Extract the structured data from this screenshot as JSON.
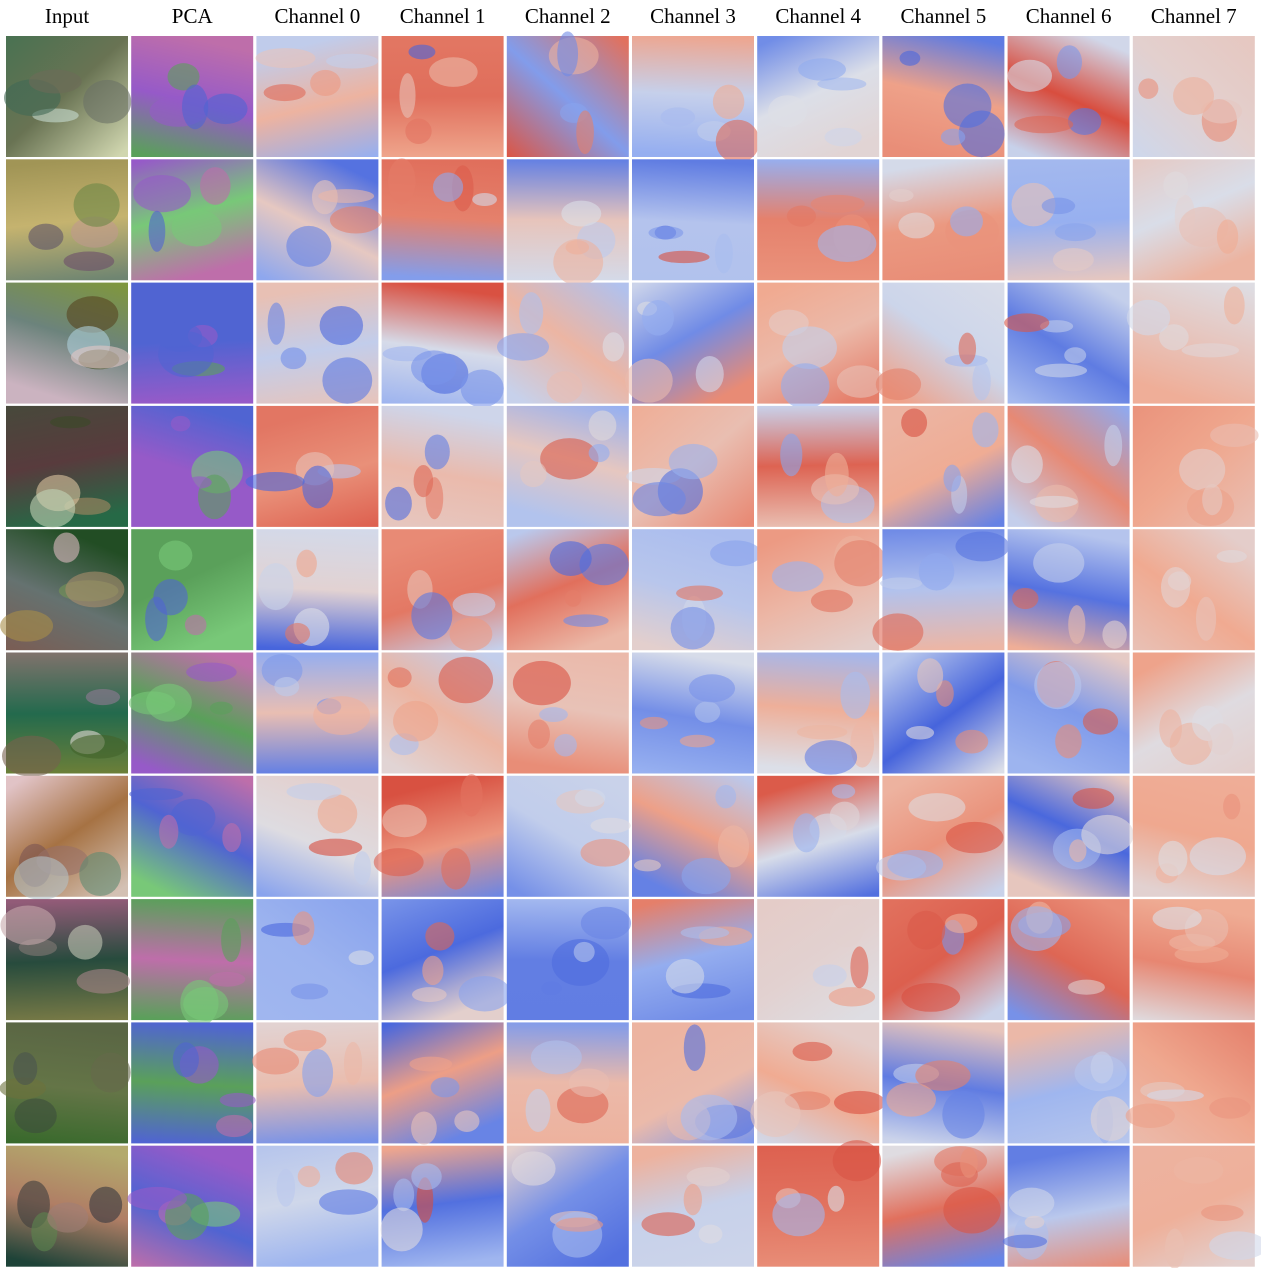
{
  "header": {
    "columns": [
      "Input",
      "PCA",
      "Channel 0",
      "Channel 1",
      "Channel 2",
      "Channel 3",
      "Channel 4",
      "Channel 5",
      "Channel 6",
      "Channel 7"
    ]
  }
}
